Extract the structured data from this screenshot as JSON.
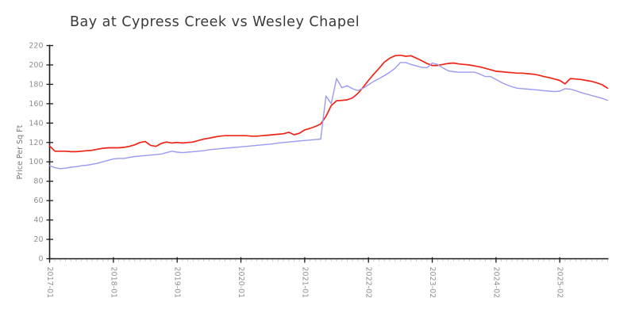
{
  "title": "Bay at Cypress Creek vs Wesley Chapel",
  "colors": {
    "axis": "#1a1a1a",
    "major_tick": "#1a1a1a",
    "minor_tick": "#c9c9c9",
    "tick_label": "#8f8f8f",
    "title_text": "#3a3a3a",
    "series_red": "#ee2417",
    "series_blue": "#9b99f0",
    "background": "#ffffff"
  },
  "chart_data": {
    "type": "line",
    "title": "Bay at Cypress Creek vs Wesley Chapel",
    "xlabel": "",
    "ylabel": "Price Per Sq Ft",
    "ylim": [
      0,
      220
    ],
    "grid": false,
    "legend_position": "none",
    "y_ticks": [
      0,
      20,
      40,
      60,
      80,
      100,
      120,
      140,
      160,
      180,
      200,
      220
    ],
    "x_tick_indices": [
      0,
      12,
      24,
      36,
      48,
      60,
      72,
      84,
      96
    ],
    "x_tick_labels": [
      "2017-01",
      "2018-01",
      "2019-01",
      "2020-01",
      "2021-01",
      "2022-02",
      "2023-02",
      "2024-02",
      "2025-02"
    ],
    "categories": [
      "2017-01",
      "2017-02",
      "2017-03",
      "2017-04",
      "2017-05",
      "2017-06",
      "2017-07",
      "2017-08",
      "2017-09",
      "2017-10",
      "2017-11",
      "2017-12",
      "2018-01",
      "2018-02",
      "2018-03",
      "2018-04",
      "2018-05",
      "2018-06",
      "2018-07",
      "2018-08",
      "2018-09",
      "2018-10",
      "2018-11",
      "2018-12",
      "2019-01",
      "2019-02",
      "2019-03",
      "2019-04",
      "2019-05",
      "2019-06",
      "2019-07",
      "2019-08",
      "2019-09",
      "2019-10",
      "2019-11",
      "2019-12",
      "2020-01",
      "2020-02",
      "2020-03",
      "2020-04",
      "2020-05",
      "2020-06",
      "2020-07",
      "2020-08",
      "2020-09",
      "2020-10",
      "2020-11",
      "2020-12",
      "2021-01",
      "2021-02",
      "2021-03",
      "2021-04",
      "2021-05",
      "2021-06",
      "2021-07",
      "2021-08",
      "2021-09",
      "2021-10",
      "2021-11",
      "2021-12",
      "2022-02",
      "2022-03",
      "2022-04",
      "2022-05",
      "2022-06",
      "2022-07",
      "2022-08",
      "2022-09",
      "2022-10",
      "2022-11",
      "2022-12",
      "2023-01",
      "2023-02",
      "2023-03",
      "2023-04",
      "2023-05",
      "2023-06",
      "2023-07",
      "2023-08",
      "2023-09",
      "2023-10",
      "2023-11",
      "2023-12",
      "2024-01",
      "2024-02",
      "2024-03",
      "2024-04",
      "2024-05",
      "2024-06",
      "2024-07",
      "2024-08",
      "2024-09",
      "2024-10",
      "2024-11",
      "2024-12",
      "2025-01",
      "2025-02",
      "2025-03",
      "2025-04",
      "2025-05",
      "2025-06",
      "2025-07",
      "2025-08",
      "2025-09",
      "2025-10",
      "2025-11"
    ],
    "series": [
      {
        "name": "Bay at Cypress Creek",
        "color": "#ee2417",
        "values": [
          116.5,
          111,
          111,
          111,
          110.5,
          110.5,
          111,
          111.5,
          112,
          113,
          114,
          114.5,
          114.5,
          114.5,
          115,
          116,
          117.5,
          120,
          121,
          117,
          116,
          119,
          120.5,
          119.5,
          120,
          119.5,
          120,
          120.5,
          122,
          123.5,
          124.5,
          125.5,
          126.5,
          127,
          127,
          127,
          127,
          127,
          126.5,
          126.5,
          127,
          127.5,
          128,
          128.5,
          129,
          130.5,
          128,
          129.5,
          133,
          134.5,
          136.5,
          139,
          147,
          158,
          163,
          163.5,
          164,
          166,
          170.5,
          177,
          184,
          190.5,
          196.5,
          203,
          207,
          209.5,
          210,
          209,
          209.5,
          207,
          204.5,
          201.5,
          199.5,
          199.5,
          200.5,
          201.5,
          202,
          201,
          200.5,
          200,
          199,
          198,
          196.5,
          195,
          193.5,
          193,
          192.5,
          192,
          191.5,
          191.5,
          191,
          190.5,
          189.5,
          188,
          187,
          185.5,
          184,
          180.5,
          186,
          185.5,
          185,
          184,
          183,
          181.5,
          179.5,
          176
        ]
      },
      {
        "name": "Wesley Chapel",
        "color": "#9b99f0",
        "values": [
          96,
          94,
          93,
          93.5,
          94.5,
          95,
          96,
          96.5,
          97.5,
          98.5,
          100,
          101.5,
          103,
          103.5,
          103.5,
          104.5,
          105.5,
          106,
          106.5,
          107,
          107.5,
          108,
          109.5,
          111,
          110,
          109.5,
          110,
          110.5,
          111,
          111.5,
          112.5,
          113,
          113.5,
          114,
          114.5,
          115,
          115.5,
          116,
          116.5,
          117,
          117.5,
          118,
          118.5,
          119.5,
          120,
          120.5,
          121,
          121.5,
          122,
          122.5,
          123,
          123.5,
          168,
          160,
          186,
          176.5,
          178.5,
          175.5,
          173.5,
          176,
          179.5,
          183,
          186,
          189,
          192.5,
          196.5,
          202.5,
          202.5,
          200.5,
          199,
          197.5,
          197,
          202,
          200.5,
          197,
          194,
          193,
          192.5,
          192.5,
          192.5,
          192.5,
          190.5,
          188,
          188,
          185,
          182,
          179.5,
          177.5,
          176,
          175.5,
          175,
          174.5,
          174,
          173.5,
          173,
          172.5,
          173,
          175.5,
          175,
          173.5,
          171.5,
          170,
          168.5,
          167,
          165.5,
          163.5
        ]
      }
    ]
  }
}
